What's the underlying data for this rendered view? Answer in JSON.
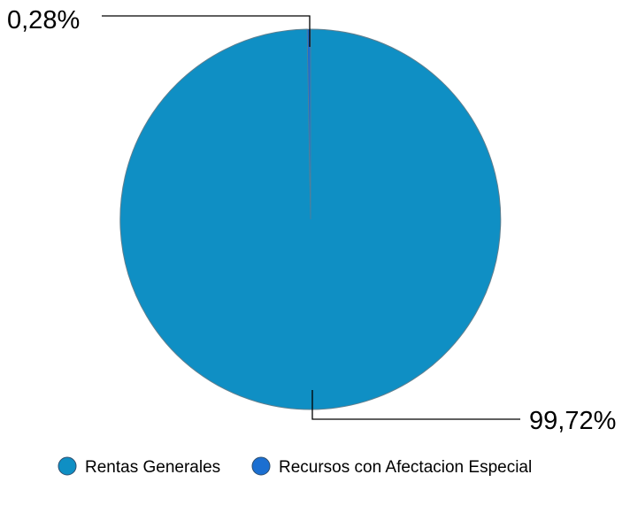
{
  "chart_data": {
    "type": "pie",
    "categories": [
      "Rentas Generales",
      "Recursos con Afectacion Especial"
    ],
    "values": [
      99.72,
      0.28
    ],
    "value_labels": [
      "99,72%",
      "0,28%"
    ],
    "colors": [
      "#0F8FC4",
      "#1B6FD1"
    ],
    "legend_position": "bottom"
  }
}
